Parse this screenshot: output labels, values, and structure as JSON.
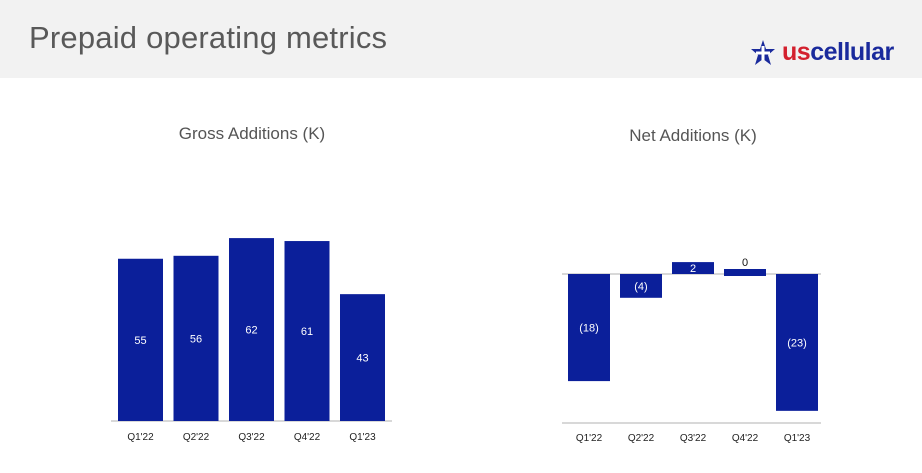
{
  "header": {
    "title": "Prepaid operating metrics",
    "logo": {
      "prefix": "us",
      "name": "cellular",
      "icon": "star-logo-icon"
    }
  },
  "colors": {
    "bar": "#0b1f9a",
    "axis": "#b0b0b0",
    "header_bg": "#f2f2f2",
    "title_text": "#595959"
  },
  "chart_data": [
    {
      "type": "bar",
      "title": "Gross Additions (K)",
      "categories": [
        "Q1'22",
        "Q2'22",
        "Q3'22",
        "Q4'22",
        "Q1'23"
      ],
      "values": [
        55,
        56,
        62,
        61,
        43
      ],
      "value_labels": [
        "55",
        "56",
        "62",
        "61",
        "43"
      ],
      "xlabel": "",
      "ylabel": "",
      "grid": false,
      "legend": "none"
    },
    {
      "type": "bar",
      "title": "Net Additions (K)",
      "categories": [
        "Q1'22",
        "Q2'22",
        "Q3'22",
        "Q4'22",
        "Q1'23"
      ],
      "values": [
        -18,
        -4,
        2,
        0,
        -23
      ],
      "value_labels": [
        "(18)",
        "(4)",
        "2",
        "0",
        "(23)"
      ],
      "xlabel": "",
      "ylabel": "",
      "grid": false,
      "legend": "none"
    }
  ]
}
